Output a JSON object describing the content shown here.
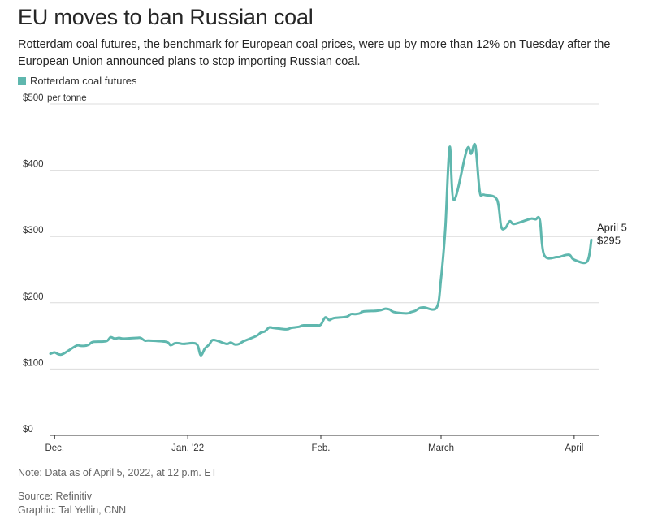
{
  "header": {
    "title": "EU moves to ban Russian coal",
    "subtitle": "Rotterdam coal futures, the benchmark for European coal prices, were up by more than 12% on Tuesday after the European Union announced plans to stop importing Russian coal."
  },
  "footer": {
    "note": "Note: Data as of April 5, 2022, at 12 p.m. ET",
    "source": "Source: Refinitiv",
    "credit": "Graphic: Tal Yellin, CNN"
  },
  "chart_data": {
    "type": "line",
    "title": "EU moves to ban Russian coal",
    "ylabel": "",
    "y_unit_label": "per tonne",
    "ylim": [
      0,
      500
    ],
    "y_ticks": [
      {
        "value": 0,
        "label": "$0"
      },
      {
        "value": 100,
        "label": "$100"
      },
      {
        "value": 200,
        "label": "$200"
      },
      {
        "value": 300,
        "label": "$300"
      },
      {
        "value": 400,
        "label": "$400"
      },
      {
        "value": 500,
        "label": "$500"
      }
    ],
    "x_ticks": [
      {
        "date": "2021-12-01",
        "label": "Dec."
      },
      {
        "date": "2022-01-01",
        "label": "Jan. '22"
      },
      {
        "date": "2022-02-01",
        "label": "Feb."
      },
      {
        "date": "2022-03-01",
        "label": "March"
      },
      {
        "date": "2022-04-01",
        "label": "April"
      }
    ],
    "grid": true,
    "legend_position": "top-left",
    "colors": {
      "line": "#5fb7ae"
    },
    "series": [
      {
        "name": "Rotterdam coal futures",
        "x": [
          "2021-11-30",
          "2021-12-01",
          "2021-12-02",
          "2021-12-03",
          "2021-12-06",
          "2021-12-07",
          "2021-12-08",
          "2021-12-09",
          "2021-12-10",
          "2021-12-13",
          "2021-12-14",
          "2021-12-15",
          "2021-12-16",
          "2021-12-17",
          "2021-12-20",
          "2021-12-21",
          "2021-12-22",
          "2021-12-23",
          "2021-12-27",
          "2021-12-28",
          "2021-12-29",
          "2021-12-30",
          "2021-12-31",
          "2022-01-03",
          "2022-01-04",
          "2022-01-05",
          "2022-01-06",
          "2022-01-07",
          "2022-01-10",
          "2022-01-11",
          "2022-01-12",
          "2022-01-13",
          "2022-01-14",
          "2022-01-17",
          "2022-01-18",
          "2022-01-19",
          "2022-01-20",
          "2022-01-21",
          "2022-01-24",
          "2022-01-25",
          "2022-01-26",
          "2022-01-27",
          "2022-01-28",
          "2022-01-31",
          "2022-02-01",
          "2022-02-02",
          "2022-02-03",
          "2022-02-04",
          "2022-02-07",
          "2022-02-08",
          "2022-02-09",
          "2022-02-10",
          "2022-02-11",
          "2022-02-14",
          "2022-02-15",
          "2022-02-16",
          "2022-02-17",
          "2022-02-18",
          "2022-02-21",
          "2022-02-22",
          "2022-02-23",
          "2022-02-24",
          "2022-02-25",
          "2022-02-28",
          "2022-03-01",
          "2022-03-02",
          "2022-03-03",
          "2022-03-04",
          "2022-03-07",
          "2022-03-08",
          "2022-03-09",
          "2022-03-10",
          "2022-03-11",
          "2022-03-14",
          "2022-03-15",
          "2022-03-16",
          "2022-03-17",
          "2022-03-18",
          "2022-03-21",
          "2022-03-22",
          "2022-03-23",
          "2022-03-24",
          "2022-03-25",
          "2022-03-28",
          "2022-03-29",
          "2022-03-30",
          "2022-03-31",
          "2022-04-01",
          "2022-04-04",
          "2022-04-05"
        ],
        "values": [
          123,
          125,
          122,
          123,
          135,
          135,
          135,
          137,
          141,
          142,
          148,
          146,
          147,
          146,
          147,
          147,
          143,
          143,
          141,
          136,
          139,
          139,
          138,
          138,
          121,
          131,
          137,
          144,
          138,
          140,
          137,
          138,
          142,
          150,
          155,
          157,
          163,
          162,
          160,
          162,
          163,
          164,
          166,
          166,
          167,
          178,
          174,
          177,
          179,
          183,
          183,
          184,
          187,
          188,
          189,
          191,
          190,
          186,
          184,
          186,
          188,
          192,
          193,
          193,
          237,
          313,
          435,
          355,
          431,
          425,
          437,
          368,
          363,
          356,
          315,
          313,
          323,
          319,
          325,
          327,
          326,
          325,
          272,
          269,
          270,
          272,
          272,
          265,
          262,
          295
        ]
      }
    ],
    "annotations": [
      {
        "date_label": "April 5",
        "value_label": "$295"
      }
    ]
  }
}
